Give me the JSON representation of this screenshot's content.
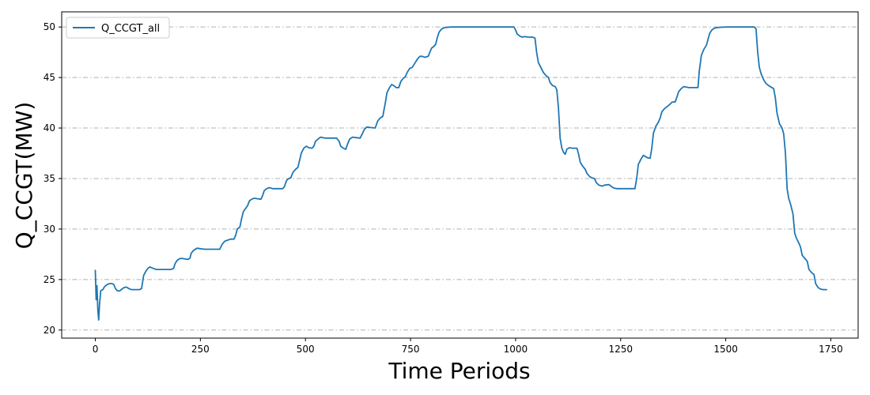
{
  "chart_data": {
    "type": "line",
    "title": "",
    "xlabel": "Time Periods",
    "ylabel": "Q_CCGT(MW)",
    "xlim": [
      -80,
      1815
    ],
    "ylim": [
      19.2,
      51.5
    ],
    "xticks": [
      0,
      250,
      500,
      750,
      1000,
      1250,
      1500,
      1750
    ],
    "yticks": [
      20,
      25,
      30,
      35,
      40,
      45,
      50
    ],
    "grid": {
      "axis": "y",
      "style": "dash-dot",
      "color": "#b0b0b0"
    },
    "legend": {
      "position": "top-left"
    },
    "series": [
      {
        "name": "Q_CCGT_all",
        "color": "#1f77b4",
        "points": [
          [
            0,
            25.9
          ],
          [
            2,
            23
          ],
          [
            4,
            24.4
          ],
          [
            6,
            22
          ],
          [
            8,
            21
          ],
          [
            10,
            22.5
          ],
          [
            13,
            23.9
          ],
          [
            18,
            24
          ],
          [
            22,
            24.3
          ],
          [
            28,
            24.5
          ],
          [
            34,
            24.6
          ],
          [
            40,
            24.6
          ],
          [
            44,
            24.5
          ],
          [
            48,
            24.1
          ],
          [
            52,
            23.9
          ],
          [
            57,
            23.85
          ],
          [
            62,
            24
          ],
          [
            68,
            24.2
          ],
          [
            74,
            24.25
          ],
          [
            80,
            24.1
          ],
          [
            86,
            24
          ],
          [
            95,
            24
          ],
          [
            105,
            24
          ],
          [
            110,
            24.1
          ],
          [
            115,
            25.4
          ],
          [
            120,
            25.8
          ],
          [
            125,
            26.1
          ],
          [
            130,
            26.25
          ],
          [
            138,
            26.1
          ],
          [
            145,
            26
          ],
          [
            160,
            26
          ],
          [
            180,
            26
          ],
          [
            186,
            26.1
          ],
          [
            190,
            26.6
          ],
          [
            195,
            26.9
          ],
          [
            200,
            27.05
          ],
          [
            205,
            27.1
          ],
          [
            212,
            27.05
          ],
          [
            220,
            27
          ],
          [
            225,
            27.1
          ],
          [
            228,
            27.6
          ],
          [
            234,
            27.9
          ],
          [
            242,
            28.1
          ],
          [
            250,
            28.05
          ],
          [
            260,
            28
          ],
          [
            280,
            28
          ],
          [
            296,
            28
          ],
          [
            302,
            28.5
          ],
          [
            308,
            28.8
          ],
          [
            315,
            28.9
          ],
          [
            322,
            29
          ],
          [
            330,
            29
          ],
          [
            334,
            29.4
          ],
          [
            338,
            30
          ],
          [
            344,
            30.2
          ],
          [
            348,
            31
          ],
          [
            352,
            31.7
          ],
          [
            357,
            32
          ],
          [
            362,
            32.3
          ],
          [
            367,
            32.8
          ],
          [
            372,
            32.95
          ],
          [
            378,
            33.05
          ],
          [
            385,
            33
          ],
          [
            394,
            32.95
          ],
          [
            398,
            33.3
          ],
          [
            402,
            33.8
          ],
          [
            408,
            34
          ],
          [
            414,
            34.1
          ],
          [
            422,
            34
          ],
          [
            435,
            34
          ],
          [
            446,
            34
          ],
          [
            450,
            34.2
          ],
          [
            455,
            34.8
          ],
          [
            460,
            35
          ],
          [
            465,
            35.05
          ],
          [
            470,
            35.6
          ],
          [
            476,
            35.9
          ],
          [
            482,
            36.1
          ],
          [
            486,
            36.8
          ],
          [
            490,
            37.5
          ],
          [
            496,
            38
          ],
          [
            502,
            38.2
          ],
          [
            508,
            38.05
          ],
          [
            516,
            38
          ],
          [
            520,
            38.2
          ],
          [
            524,
            38.7
          ],
          [
            530,
            38.9
          ],
          [
            536,
            39.1
          ],
          [
            546,
            39
          ],
          [
            560,
            39
          ],
          [
            574,
            39
          ],
          [
            580,
            38.7
          ],
          [
            584,
            38.2
          ],
          [
            590,
            38
          ],
          [
            596,
            37.9
          ],
          [
            600,
            38.4
          ],
          [
            605,
            38.9
          ],
          [
            612,
            39.1
          ],
          [
            620,
            39.05
          ],
          [
            630,
            39
          ],
          [
            635,
            39.4
          ],
          [
            640,
            39.85
          ],
          [
            646,
            40.1
          ],
          [
            654,
            40.05
          ],
          [
            666,
            40
          ],
          [
            672,
            40.7
          ],
          [
            678,
            41
          ],
          [
            684,
            41.15
          ],
          [
            690,
            42.5
          ],
          [
            694,
            43.5
          ],
          [
            700,
            44
          ],
          [
            705,
            44.3
          ],
          [
            710,
            44.2
          ],
          [
            716,
            44
          ],
          [
            722,
            44
          ],
          [
            727,
            44.6
          ],
          [
            732,
            44.9
          ],
          [
            738,
            45.1
          ],
          [
            742,
            45.5
          ],
          [
            748,
            45.9
          ],
          [
            754,
            46
          ],
          [
            760,
            46.4
          ],
          [
            766,
            46.8
          ],
          [
            772,
            47.1
          ],
          [
            778,
            47.1
          ],
          [
            784,
            47
          ],
          [
            792,
            47.1
          ],
          [
            796,
            47.5
          ],
          [
            800,
            47.9
          ],
          [
            806,
            48.1
          ],
          [
            810,
            48.3
          ],
          [
            814,
            49
          ],
          [
            818,
            49.5
          ],
          [
            824,
            49.8
          ],
          [
            832,
            49.95
          ],
          [
            845,
            50
          ],
          [
            900,
            50
          ],
          [
            960,
            50
          ],
          [
            996,
            50
          ],
          [
            1000,
            49.7
          ],
          [
            1004,
            49.3
          ],
          [
            1010,
            49.1
          ],
          [
            1016,
            49
          ],
          [
            1022,
            49.05
          ],
          [
            1030,
            49
          ],
          [
            1040,
            49
          ],
          [
            1046,
            48.9
          ],
          [
            1050,
            47.5
          ],
          [
            1054,
            46.5
          ],
          [
            1060,
            46
          ],
          [
            1066,
            45.5
          ],
          [
            1072,
            45.2
          ],
          [
            1078,
            45
          ],
          [
            1082,
            44.5
          ],
          [
            1088,
            44.2
          ],
          [
            1094,
            44.1
          ],
          [
            1098,
            43.8
          ],
          [
            1102,
            42
          ],
          [
            1106,
            39
          ],
          [
            1110,
            38
          ],
          [
            1114,
            37.6
          ],
          [
            1118,
            37.4
          ],
          [
            1122,
            37.9
          ],
          [
            1128,
            38.05
          ],
          [
            1136,
            38
          ],
          [
            1146,
            38
          ],
          [
            1150,
            37.4
          ],
          [
            1154,
            36.6
          ],
          [
            1160,
            36.2
          ],
          [
            1166,
            35.9
          ],
          [
            1170,
            35.5
          ],
          [
            1176,
            35.2
          ],
          [
            1182,
            35.05
          ],
          [
            1188,
            35
          ],
          [
            1192,
            34.6
          ],
          [
            1198,
            34.35
          ],
          [
            1206,
            34.25
          ],
          [
            1212,
            34.35
          ],
          [
            1222,
            34.4
          ],
          [
            1228,
            34.2
          ],
          [
            1234,
            34.05
          ],
          [
            1242,
            34
          ],
          [
            1250,
            34
          ],
          [
            1270,
            34
          ],
          [
            1284,
            34
          ],
          [
            1288,
            35
          ],
          [
            1292,
            36.4
          ],
          [
            1298,
            36.9
          ],
          [
            1304,
            37.3
          ],
          [
            1308,
            37.2
          ],
          [
            1314,
            37.05
          ],
          [
            1320,
            37
          ],
          [
            1324,
            38
          ],
          [
            1328,
            39.5
          ],
          [
            1334,
            40.2
          ],
          [
            1340,
            40.6
          ],
          [
            1344,
            41
          ],
          [
            1348,
            41.6
          ],
          [
            1354,
            41.9
          ],
          [
            1360,
            42.1
          ],
          [
            1366,
            42.3
          ],
          [
            1372,
            42.55
          ],
          [
            1380,
            42.6
          ],
          [
            1384,
            43.1
          ],
          [
            1388,
            43.6
          ],
          [
            1394,
            43.9
          ],
          [
            1400,
            44.1
          ],
          [
            1406,
            44.05
          ],
          [
            1412,
            44
          ],
          [
            1424,
            44
          ],
          [
            1434,
            44
          ],
          [
            1437,
            45.6
          ],
          [
            1442,
            47.2
          ],
          [
            1448,
            47.8
          ],
          [
            1454,
            48.2
          ],
          [
            1458,
            48.8
          ],
          [
            1462,
            49.4
          ],
          [
            1468,
            49.75
          ],
          [
            1474,
            49.9
          ],
          [
            1484,
            49.97
          ],
          [
            1500,
            50
          ],
          [
            1530,
            50
          ],
          [
            1568,
            50
          ],
          [
            1572,
            49.8
          ],
          [
            1576,
            47.5
          ],
          [
            1580,
            46
          ],
          [
            1584,
            45.4
          ],
          [
            1590,
            44.8
          ],
          [
            1596,
            44.4
          ],
          [
            1602,
            44.2
          ],
          [
            1608,
            44.05
          ],
          [
            1614,
            43.9
          ],
          [
            1618,
            43
          ],
          [
            1622,
            41.5
          ],
          [
            1628,
            40.4
          ],
          [
            1634,
            40
          ],
          [
            1638,
            39.4
          ],
          [
            1642,
            37.5
          ],
          [
            1646,
            34
          ],
          [
            1650,
            33
          ],
          [
            1654,
            32.5
          ],
          [
            1660,
            31.5
          ],
          [
            1664,
            29.6
          ],
          [
            1668,
            29.1
          ],
          [
            1674,
            28.6
          ],
          [
            1678,
            28.2
          ],
          [
            1682,
            27.4
          ],
          [
            1688,
            27.1
          ],
          [
            1694,
            26.8
          ],
          [
            1698,
            26
          ],
          [
            1704,
            25.7
          ],
          [
            1710,
            25.5
          ],
          [
            1714,
            24.6
          ],
          [
            1720,
            24.2
          ],
          [
            1726,
            24.05
          ],
          [
            1732,
            24
          ],
          [
            1740,
            24
          ]
        ]
      }
    ]
  }
}
